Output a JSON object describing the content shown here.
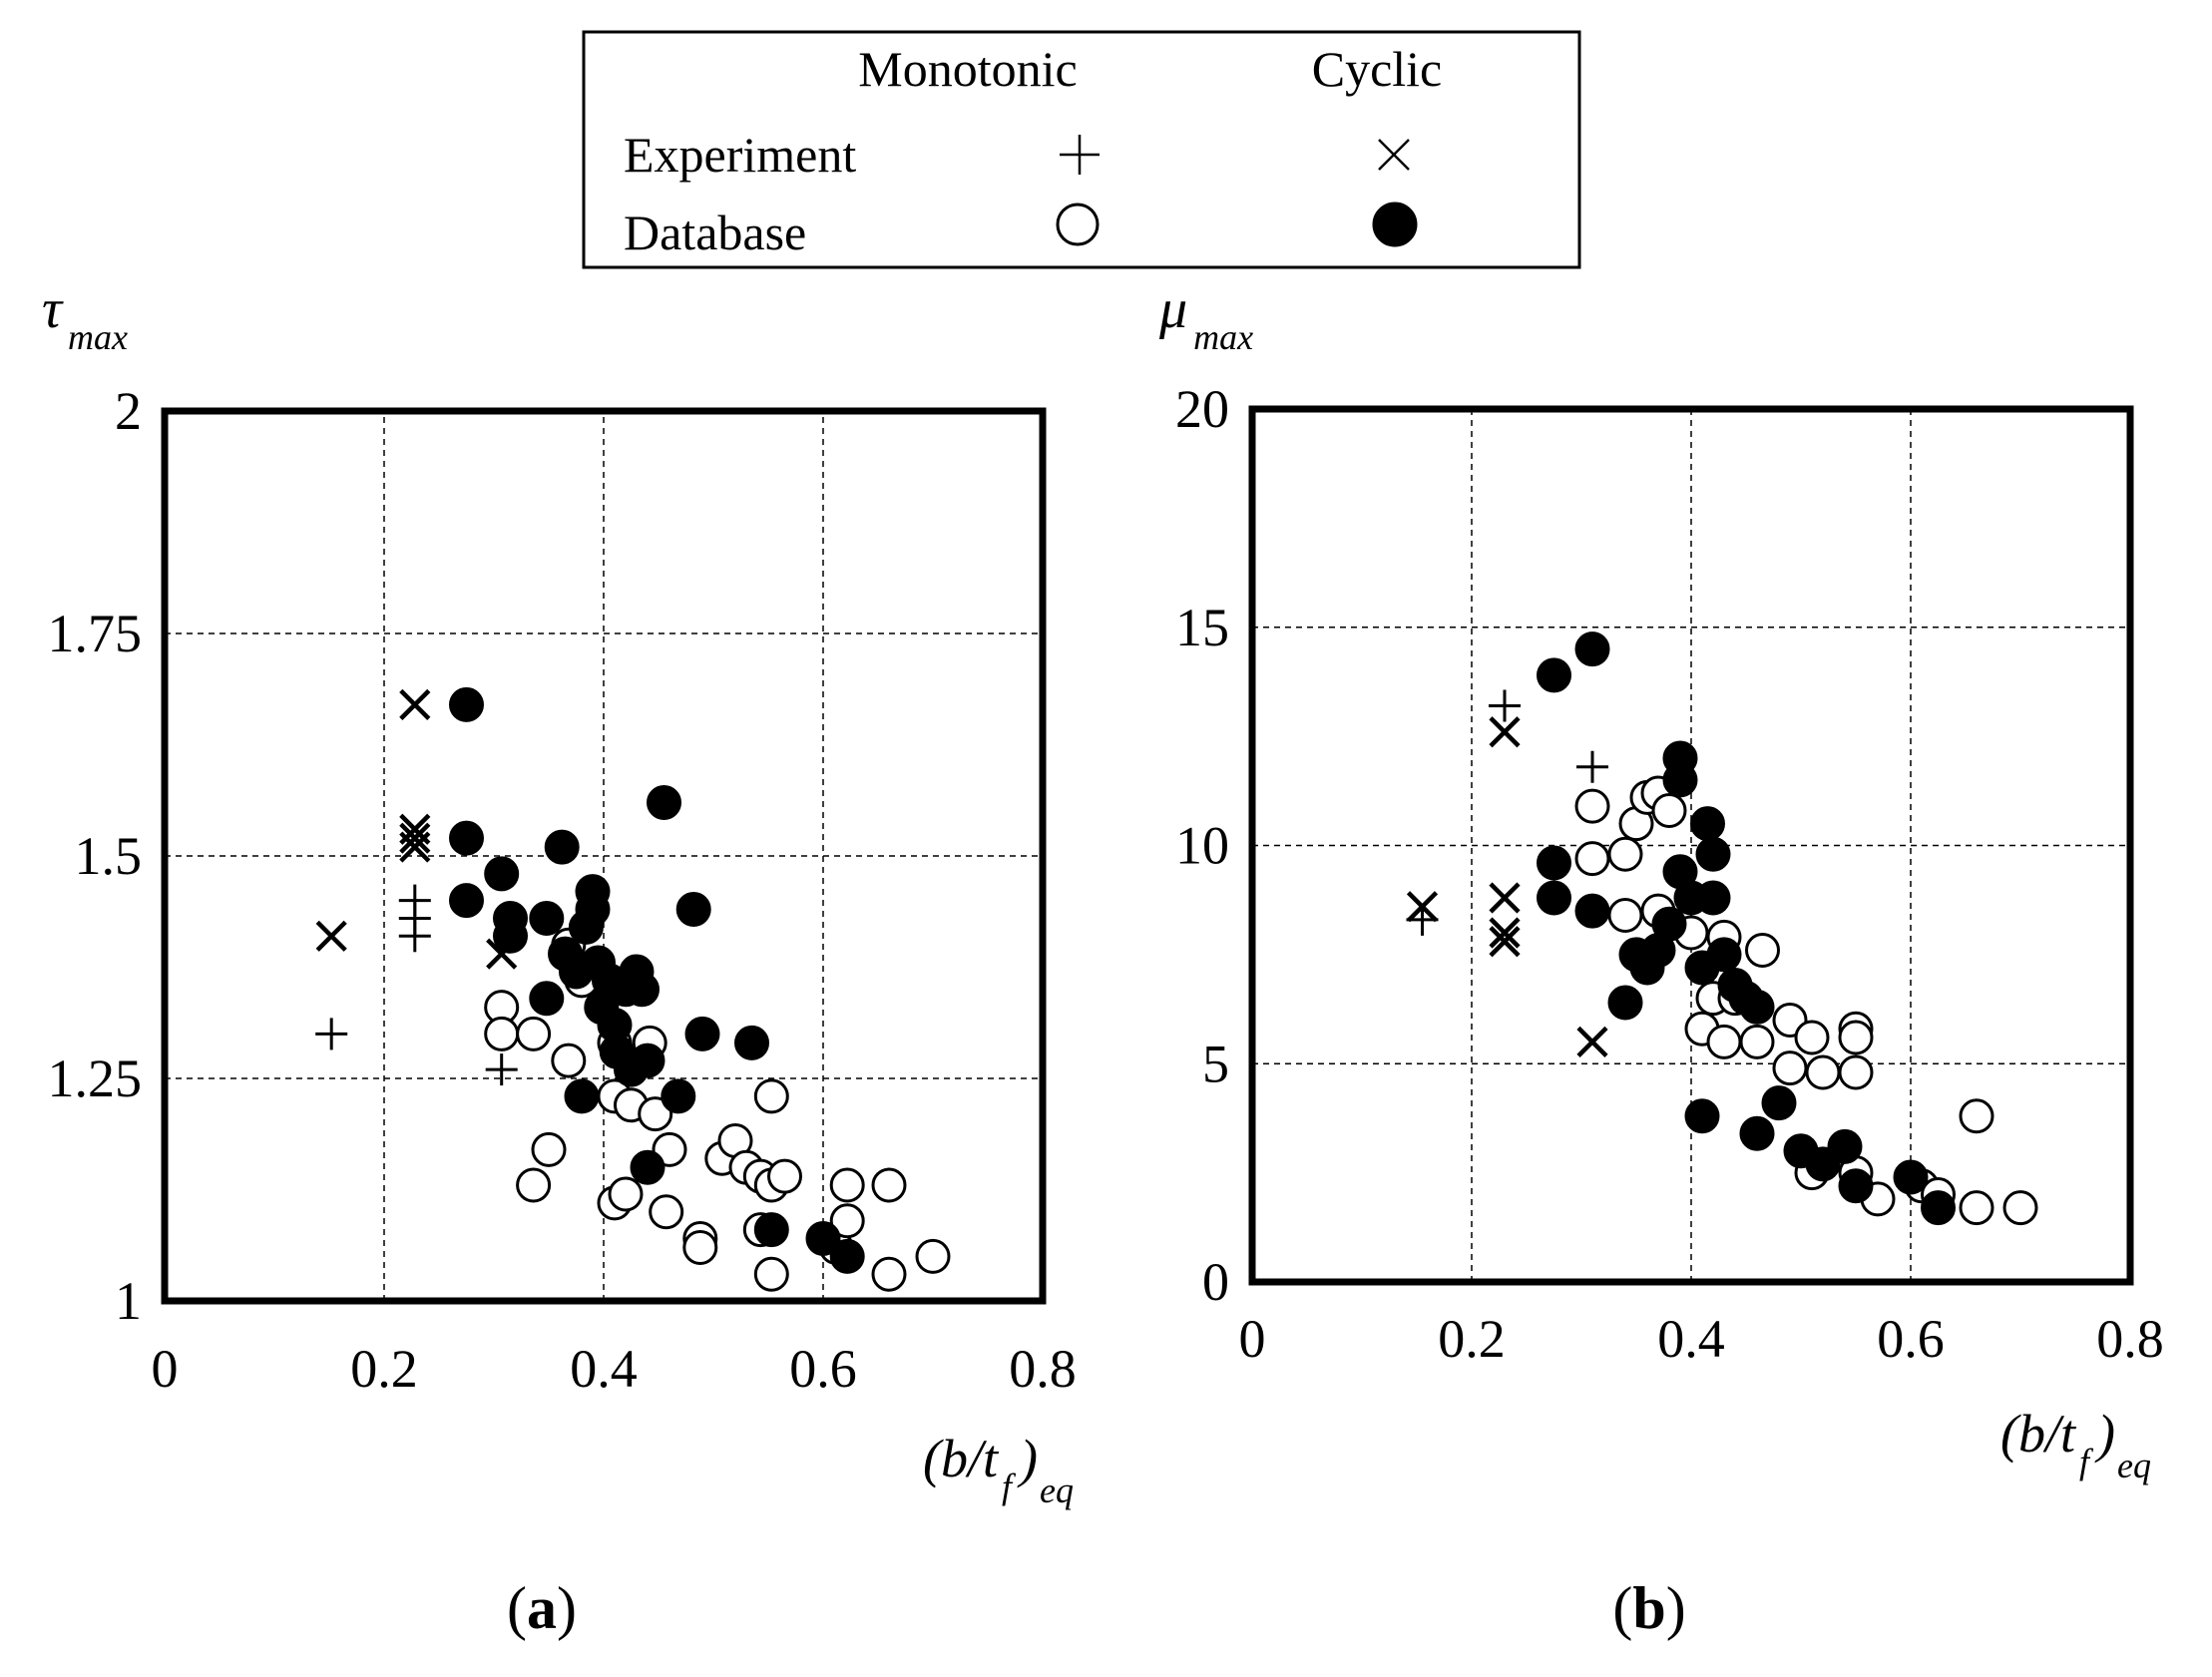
{
  "legend": {
    "col_monotonic": "Monotonic",
    "col_cyclic": "Cyclic",
    "row_experiment": "Experiment",
    "row_database": "Database"
  },
  "chart_data": [
    {
      "type": "scatter",
      "panel_label": "a",
      "ylabel": "τ",
      "ylabel_sub": "max",
      "xlabel": "(b/t",
      "xlabel_sub1": "f",
      "xlabel_mid": ")",
      "xlabel_sub2": "eq",
      "xlim": [
        0,
        0.8
      ],
      "ylim": [
        1,
        2
      ],
      "xticks": [
        0,
        0.2,
        0.4,
        0.6,
        0.8
      ],
      "xtick_labels": [
        "0",
        "0.2",
        "0.4",
        "0.6",
        "0.8"
      ],
      "yticks": [
        1,
        1.25,
        1.5,
        1.75,
        2
      ],
      "ytick_labels": [
        "1",
        "1.25",
        "1.5",
        "1.75",
        "2"
      ],
      "grid": true,
      "series": [
        {
          "name": "Experiment Monotonic",
          "marker": "plus",
          "points": [
            [
              0.152,
              1.3
            ],
            [
              0.228,
              1.45
            ],
            [
              0.228,
              1.43
            ],
            [
              0.228,
              1.41
            ],
            [
              0.307,
              1.26
            ]
          ]
        },
        {
          "name": "Experiment Cyclic",
          "marker": "cross",
          "points": [
            [
              0.152,
              1.41
            ],
            [
              0.228,
              1.67
            ],
            [
              0.228,
              1.53
            ],
            [
              0.228,
              1.52
            ],
            [
              0.228,
              1.51
            ],
            [
              0.307,
              1.39
            ]
          ]
        },
        {
          "name": "Database Monotonic",
          "marker": "open-circle",
          "points": [
            [
              0.307,
              1.33
            ],
            [
              0.307,
              1.3
            ],
            [
              0.336,
              1.3
            ],
            [
              0.368,
              1.4
            ],
            [
              0.38,
              1.36
            ],
            [
              0.368,
              1.27
            ],
            [
              0.41,
              1.29
            ],
            [
              0.442,
              1.29
            ],
            [
              0.41,
              1.23
            ],
            [
              0.425,
              1.22
            ],
            [
              0.447,
              1.21
            ],
            [
              0.46,
              1.17
            ],
            [
              0.35,
              1.17
            ],
            [
              0.336,
              1.13
            ],
            [
              0.41,
              1.11
            ],
            [
              0.42,
              1.12
            ],
            [
              0.457,
              1.1
            ],
            [
              0.488,
              1.07
            ],
            [
              0.488,
              1.06
            ],
            [
              0.508,
              1.16
            ],
            [
              0.52,
              1.18
            ],
            [
              0.53,
              1.15
            ],
            [
              0.543,
              1.14
            ],
            [
              0.553,
              1.23
            ],
            [
              0.553,
              1.13
            ],
            [
              0.565,
              1.14
            ],
            [
              0.543,
              1.08
            ],
            [
              0.553,
              1.03
            ],
            [
              0.612,
              1.06
            ],
            [
              0.622,
              1.13
            ],
            [
              0.622,
              1.09
            ],
            [
              0.66,
              1.13
            ],
            [
              0.66,
              1.03
            ],
            [
              0.7,
              1.05
            ]
          ]
        },
        {
          "name": "Database Cyclic",
          "marker": "filled-circle",
          "points": [
            [
              0.275,
              1.67
            ],
            [
              0.275,
              1.52
            ],
            [
              0.275,
              1.45
            ],
            [
              0.307,
              1.48
            ],
            [
              0.315,
              1.43
            ],
            [
              0.315,
              1.41
            ],
            [
              0.362,
              1.51
            ],
            [
              0.348,
              1.43
            ],
            [
              0.348,
              1.34
            ],
            [
              0.365,
              1.39
            ],
            [
              0.375,
              1.37
            ],
            [
              0.384,
              1.42
            ],
            [
              0.39,
              1.46
            ],
            [
              0.39,
              1.44
            ],
            [
              0.395,
              1.38
            ],
            [
              0.398,
              1.33
            ],
            [
              0.405,
              1.36
            ],
            [
              0.41,
              1.31
            ],
            [
              0.42,
              1.35
            ],
            [
              0.43,
              1.37
            ],
            [
              0.435,
              1.35
            ],
            [
              0.412,
              1.28
            ],
            [
              0.425,
              1.26
            ],
            [
              0.44,
              1.27
            ],
            [
              0.455,
              1.56
            ],
            [
              0.482,
              1.44
            ],
            [
              0.49,
              1.3
            ],
            [
              0.468,
              1.23
            ],
            [
              0.38,
              1.23
            ],
            [
              0.44,
              1.15
            ],
            [
              0.535,
              1.29
            ],
            [
              0.553,
              1.08
            ],
            [
              0.6,
              1.07
            ],
            [
              0.622,
              1.05
            ]
          ]
        }
      ]
    },
    {
      "type": "scatter",
      "panel_label": "b",
      "ylabel": "μ",
      "ylabel_sub": "max",
      "xlabel": "(b/t",
      "xlabel_sub1": "f",
      "xlabel_mid": ")",
      "xlabel_sub2": "eq",
      "xlim": [
        0,
        0.8
      ],
      "ylim": [
        0,
        20
      ],
      "xticks": [
        0,
        0.2,
        0.4,
        0.6,
        0.8
      ],
      "xtick_labels": [
        "0",
        "0.2",
        "0.4",
        "0.6",
        "0.8"
      ],
      "yticks": [
        0,
        5,
        10,
        15,
        20
      ],
      "ytick_labels": [
        "0",
        "5",
        "10",
        "15",
        "20"
      ],
      "grid": true,
      "series": [
        {
          "name": "Experiment Monotonic",
          "marker": "plus",
          "points": [
            [
              0.155,
              8.3
            ],
            [
              0.23,
              13.2
            ],
            [
              0.31,
              11.8
            ]
          ]
        },
        {
          "name": "Experiment Cyclic",
          "marker": "cross",
          "points": [
            [
              0.155,
              8.6
            ],
            [
              0.23,
              12.6
            ],
            [
              0.23,
              8.8
            ],
            [
              0.23,
              8.0
            ],
            [
              0.23,
              7.8
            ],
            [
              0.31,
              5.5
            ]
          ]
        },
        {
          "name": "Database Monotonic",
          "marker": "open-circle",
          "points": [
            [
              0.31,
              10.9
            ],
            [
              0.31,
              9.7
            ],
            [
              0.34,
              9.8
            ],
            [
              0.35,
              10.5
            ],
            [
              0.36,
              11.1
            ],
            [
              0.37,
              11.2
            ],
            [
              0.38,
              10.8
            ],
            [
              0.34,
              8.4
            ],
            [
              0.37,
              8.5
            ],
            [
              0.4,
              8.0
            ],
            [
              0.41,
              5.8
            ],
            [
              0.42,
              6.5
            ],
            [
              0.43,
              5.5
            ],
            [
              0.43,
              7.9
            ],
            [
              0.44,
              6.5
            ],
            [
              0.46,
              5.5
            ],
            [
              0.465,
              7.6
            ],
            [
              0.49,
              6.0
            ],
            [
              0.49,
              4.9
            ],
            [
              0.51,
              5.6
            ],
            [
              0.52,
              4.8
            ],
            [
              0.55,
              5.8
            ],
            [
              0.55,
              5.6
            ],
            [
              0.55,
              4.8
            ],
            [
              0.51,
              2.5
            ],
            [
              0.55,
              2.5
            ],
            [
              0.57,
              1.9
            ],
            [
              0.61,
              2.2
            ],
            [
              0.625,
              2.0
            ],
            [
              0.66,
              1.7
            ],
            [
              0.7,
              1.7
            ],
            [
              0.66,
              3.8
            ]
          ]
        },
        {
          "name": "Database Cyclic",
          "marker": "filled-circle",
          "points": [
            [
              0.275,
              13.9
            ],
            [
              0.31,
              14.5
            ],
            [
              0.275,
              9.6
            ],
            [
              0.275,
              8.8
            ],
            [
              0.31,
              8.5
            ],
            [
              0.34,
              6.4
            ],
            [
              0.35,
              7.5
            ],
            [
              0.36,
              7.2
            ],
            [
              0.37,
              7.6
            ],
            [
              0.38,
              8.2
            ],
            [
              0.39,
              9.4
            ],
            [
              0.39,
              12.0
            ],
            [
              0.39,
              11.5
            ],
            [
              0.4,
              8.8
            ],
            [
              0.41,
              7.2
            ],
            [
              0.415,
              10.5
            ],
            [
              0.42,
              9.8
            ],
            [
              0.42,
              8.8
            ],
            [
              0.43,
              7.5
            ],
            [
              0.44,
              6.8
            ],
            [
              0.45,
              6.5
            ],
            [
              0.46,
              6.3
            ],
            [
              0.41,
              3.8
            ],
            [
              0.46,
              3.4
            ],
            [
              0.48,
              4.1
            ],
            [
              0.5,
              3.0
            ],
            [
              0.52,
              2.7
            ],
            [
              0.54,
              3.1
            ],
            [
              0.55,
              2.2
            ],
            [
              0.6,
              2.4
            ],
            [
              0.625,
              1.7
            ]
          ]
        }
      ]
    }
  ]
}
